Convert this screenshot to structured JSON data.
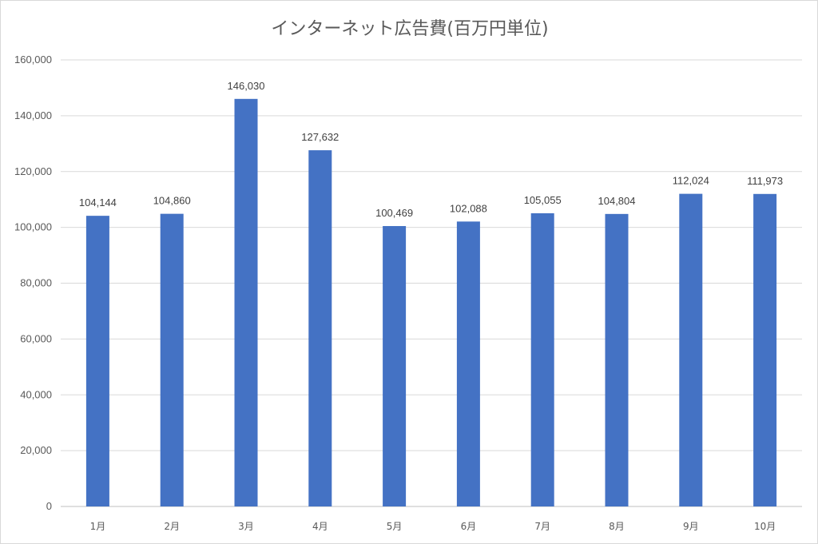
{
  "chart_data": {
    "type": "bar",
    "title": "インターネット広告費(百万円単位)",
    "categories": [
      "1月",
      "2月",
      "3月",
      "4月",
      "5月",
      "6月",
      "7月",
      "8月",
      "9月",
      "10月"
    ],
    "values": [
      104144,
      104860,
      146030,
      127632,
      100469,
      102088,
      105055,
      104804,
      112024,
      111973
    ],
    "data_labels": [
      "104,144",
      "104,860",
      "146,030",
      "127,632",
      "100,469",
      "102,088",
      "105,055",
      "104,804",
      "112,024",
      "111,973"
    ],
    "ylim": [
      0,
      160000
    ],
    "yticks": [
      0,
      20000,
      40000,
      60000,
      80000,
      100000,
      120000,
      140000,
      160000
    ],
    "ytick_labels": [
      "0",
      "20,000",
      "40,000",
      "60,000",
      "80,000",
      "100,000",
      "120,000",
      "140,000",
      "160,000"
    ],
    "bar_color": "#4472C4",
    "grid": true,
    "legend": "none"
  }
}
